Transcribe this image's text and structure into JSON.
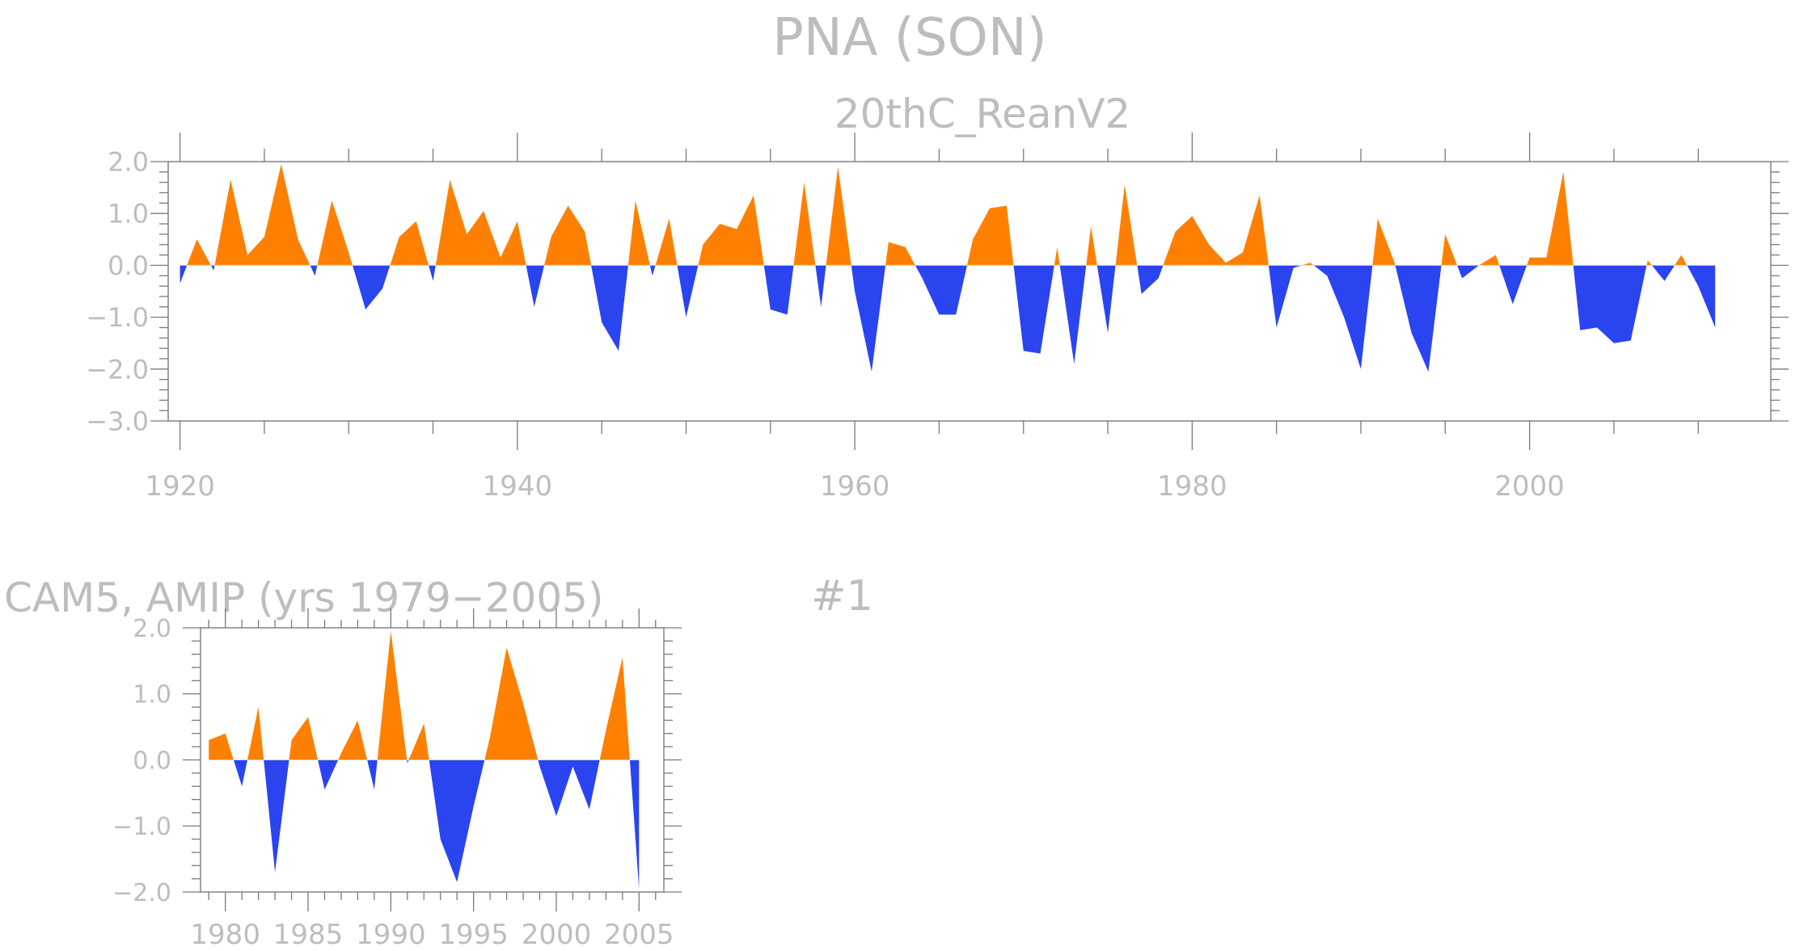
{
  "figure": {
    "title": "PNA (SON)",
    "panel_label": "#1"
  },
  "colors": {
    "positive": "#ff8000",
    "negative": "#2a44f0",
    "text": "#bdbdbd",
    "axis": "#7a7a7a"
  },
  "chart_data": [
    {
      "type": "area",
      "title": "20thC_ReanV2",
      "xlim": [
        1919.3,
        2014.3
      ],
      "ylim": [
        -3.0,
        2.0
      ],
      "yticks": [
        2.0,
        1.0,
        0.0,
        -1.0,
        -2.0,
        -3.0
      ],
      "ytick_labels": [
        "2.0",
        "1.0",
        "0.0",
        "−1.0",
        "−2.0",
        "−3.0"
      ],
      "xticks": [
        1920,
        1940,
        1960,
        1980,
        2000
      ],
      "xtick_labels": [
        "1920",
        "1940",
        "1960",
        "1980",
        "2000"
      ],
      "fill_above_zero": "positive",
      "fill_below_zero": "negative",
      "x": [
        1920,
        1921,
        1922,
        1923,
        1924,
        1925,
        1926,
        1927,
        1928,
        1929,
        1930,
        1931,
        1932,
        1933,
        1934,
        1935,
        1936,
        1937,
        1938,
        1939,
        1940,
        1941,
        1942,
        1943,
        1944,
        1945,
        1946,
        1947,
        1948,
        1949,
        1950,
        1951,
        1952,
        1953,
        1954,
        1955,
        1956,
        1957,
        1958,
        1959,
        1960,
        1961,
        1962,
        1963,
        1964,
        1965,
        1966,
        1967,
        1968,
        1969,
        1970,
        1971,
        1972,
        1973,
        1974,
        1975,
        1976,
        1977,
        1978,
        1979,
        1980,
        1981,
        1982,
        1983,
        1984,
        1985,
        1986,
        1987,
        1988,
        1989,
        1990,
        1991,
        1992,
        1993,
        1994,
        1995,
        1996,
        1997,
        1998,
        1999,
        2000,
        2001,
        2002,
        2003,
        2004,
        2005,
        2006,
        2007,
        2008,
        2009,
        2010,
        2011
      ],
      "y": [
        -0.35,
        0.5,
        -0.1,
        1.65,
        0.2,
        0.55,
        1.95,
        0.5,
        -0.2,
        1.25,
        0.25,
        -0.85,
        -0.45,
        0.55,
        0.85,
        -0.3,
        1.65,
        0.6,
        1.05,
        0.15,
        0.85,
        -0.8,
        0.55,
        1.15,
        0.65,
        -1.1,
        -1.65,
        1.25,
        -0.2,
        0.9,
        -1.0,
        0.4,
        0.8,
        0.7,
        1.35,
        -0.85,
        -0.95,
        1.6,
        -0.8,
        1.9,
        -0.5,
        -2.05,
        0.45,
        0.35,
        -0.25,
        -0.95,
        -0.95,
        0.5,
        1.1,
        1.15,
        -1.65,
        -1.7,
        0.35,
        -1.9,
        0.75,
        -1.3,
        1.55,
        -0.55,
        -0.25,
        0.65,
        0.95,
        0.4,
        0.05,
        0.25,
        1.35,
        -1.2,
        -0.05,
        0.05,
        -0.2,
        -1.0,
        -2.0,
        0.9,
        0.05,
        -1.3,
        -2.05,
        0.6,
        -0.25,
        0.0,
        0.2,
        -0.75,
        0.15,
        0.15,
        1.8,
        -1.25,
        -1.2,
        -1.5,
        -1.45,
        0.1,
        -0.3,
        0.2,
        -0.4,
        -1.2
      ]
    },
    {
      "type": "area",
      "title": "CAM5, AMIP (yrs 1979−2005)",
      "xlim": [
        1978.5,
        2006.5
      ],
      "ylim": [
        -2.0,
        2.0
      ],
      "yticks": [
        2.0,
        1.0,
        0.0,
        -1.0,
        -2.0
      ],
      "ytick_labels": [
        "2.0",
        "1.0",
        "0.0",
        "−1.0",
        "−2.0"
      ],
      "xticks": [
        1980,
        1985,
        1990,
        1995,
        2000,
        2005
      ],
      "xtick_labels": [
        "1980",
        "1985",
        "1990",
        "1995",
        "2000",
        "2005"
      ],
      "fill_above_zero": "positive",
      "fill_below_zero": "negative",
      "x": [
        1979,
        1980,
        1981,
        1982,
        1983,
        1984,
        1985,
        1986,
        1987,
        1988,
        1989,
        1990,
        1991,
        1992,
        1993,
        1994,
        1995,
        1996,
        1997,
        1998,
        1999,
        2000,
        2001,
        2002,
        2003,
        2004,
        2005
      ],
      "y": [
        0.3,
        0.4,
        -0.4,
        0.8,
        -1.7,
        0.3,
        0.65,
        -0.45,
        0.1,
        0.6,
        -0.45,
        1.95,
        -0.05,
        0.55,
        -1.2,
        -1.85,
        -0.7,
        0.35,
        1.7,
        0.85,
        -0.1,
        -0.85,
        -0.1,
        -0.75,
        0.45,
        1.55,
        -1.95
      ]
    }
  ]
}
